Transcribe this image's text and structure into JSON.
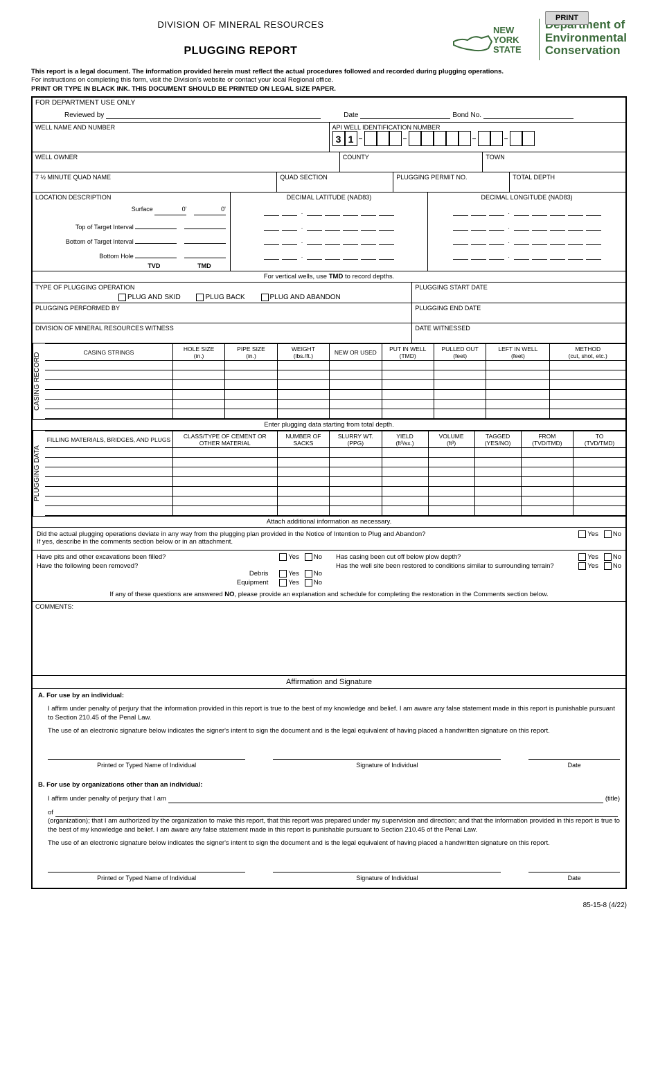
{
  "print_button": "PRINT",
  "division": "DIVISION OF MINERAL RESOURCES",
  "title": "PLUGGING REPORT",
  "nys": {
    "l1": "NEW",
    "l2": "YORK",
    "l3": "STATE"
  },
  "dept": {
    "l1": "Department of",
    "l2": "Environmental",
    "l3": "Conservation"
  },
  "intro": {
    "line1": "This report is a legal document. The information provided herein must reflect the actual procedures followed and recorded during plugging operations.",
    "line2": "For instructions on completing this form, visit the Division's website or contact your local Regional office.",
    "line3": "PRINT OR TYPE IN BLACK INK. THIS DOCUMENT SHOULD BE PRINTED ON LEGAL SIZE PAPER."
  },
  "dept_only": {
    "header": "FOR DEPARTMENT USE ONLY",
    "reviewed": "Reviewed by",
    "date": "Date",
    "bond": "Bond No."
  },
  "labels": {
    "well_name": "WELL NAME AND NUMBER",
    "api": "API WELL IDENTIFICATION NUMBER",
    "api_31": "3",
    "api_1": "1",
    "owner": "WELL OWNER",
    "county": "COUNTY",
    "town": "TOWN",
    "quad": "7 ½ MINUTE QUAD NAME",
    "quad_section": "QUAD SECTION",
    "permit": "PLUGGING PERMIT NO.",
    "depth": "TOTAL DEPTH",
    "loc": "LOCATION DESCRIPTION",
    "lat": "DECIMAL LATITUDE (NAD83)",
    "lon": "DECIMAL LONGITUDE (NAD83)",
    "surface": "Surface",
    "top_target": "Top of Target Interval",
    "bot_target": "Bottom of Target Interval",
    "bottom_hole": "Bottom Hole",
    "tvd": "TVD",
    "tmd": "TMD",
    "zero_ft": "0'",
    "vertical_note": "For vertical wells, use TMD to record depths.",
    "type_op": "TYPE OF PLUGGING OPERATION",
    "plug_skid": "PLUG AND SKID",
    "plug_back": "PLUG BACK",
    "plug_abandon": "PLUG AND ABANDON",
    "start_date": "PLUGGING START DATE",
    "performed_by": "PLUGGING PERFORMED BY",
    "end_date": "PLUGGING END DATE",
    "witness": "DIVISION OF MINERAL RESOURCES WITNESS",
    "date_witnessed": "DATE WITNESSED"
  },
  "casing": {
    "vlabel": "CASING RECORD",
    "cols": [
      "CASING STRINGS",
      "HOLE SIZE (in.)",
      "PIPE SIZE (in.)",
      "WEIGHT (lbs./ft.)",
      "NEW OR USED",
      "PUT IN WELL (TMD)",
      "PULLED OUT (feet)",
      "LEFT IN WELL (feet)",
      "METHOD (cut, shot, etc.)"
    ],
    "row_count": 6
  },
  "plugging": {
    "starting_note": "Enter plugging data starting from total depth.",
    "vlabel": "PLUGGING DATA",
    "cols": [
      "FILLING MATERIALS, BRIDGES, AND PLUGS",
      "CLASS/TYPE OF CEMENT OR OTHER MATERIAL",
      "NUMBER OF SACKS",
      "SLURRY WT. (PPG)",
      "YIELD (ft³/sx.)",
      "VOLUME (ft³)",
      "TAGGED (YES/NO)",
      "FROM (TVD/TMD)",
      "TO (TVD/TMD)"
    ],
    "attach_note": "Attach additional information as necessary.",
    "row_count": 7
  },
  "questions": {
    "deviate": "Did the actual plugging operations deviate in any way from the plugging plan provided in the Notice of Intention to Plug and Abandon?",
    "deviate_sub": "If yes, describe in the comments section below or in an attachment.",
    "pits": "Have pits and other excavations been filled?",
    "removed": "Have the following been removed?",
    "debris": "Debris",
    "equipment": "Equipment",
    "casing_cut": "Has casing been cut off below plow depth?",
    "restored": "Has the well site been restored to conditions similar to surrounding terrain?",
    "yes": "Yes",
    "no": "No",
    "no_note": "If any of these questions are answered NO, please provide an explanation and schedule for completing the restoration in the Comments section below."
  },
  "comments": "COMMENTS:",
  "affirm": {
    "header": "Affirmation and Signature",
    "a_head": "A. For use by an individual:",
    "a1": "I affirm under penalty of perjury that the information provided in this report is true to the best of my knowledge and belief. I am aware any false statement made in this report is punishable pursuant to Section 210.45 of the Penal Law.",
    "a2": "The use of an electronic signature below indicates the signer's intent to sign the document and is the legal equivalent of having placed a handwritten signature on this report.",
    "printed": "Printed or Typed Name of Individual",
    "sig": "Signature of Individual",
    "date": "Date",
    "b_head": "B. For use by organizations other than an individual:",
    "b1_pre": "I affirm under penalty of perjury that I am",
    "b1_post": "(title)",
    "b2_pre": "of",
    "b2_post": "(organization); that I am authorized by the organization to make this report, that this report was prepared under my supervision and direction; and that the information provided in this report is true to the best of my knowledge and belief. I am aware any false statement made in this report is punishable pursuant to Section 210.45 of the Penal Law.",
    "b3": "The use of an electronic signature below indicates the signer's intent to sign the document and is the legal equivalent of having placed a handwritten signature on this report."
  },
  "footer": "85-15-8 (4/22)"
}
